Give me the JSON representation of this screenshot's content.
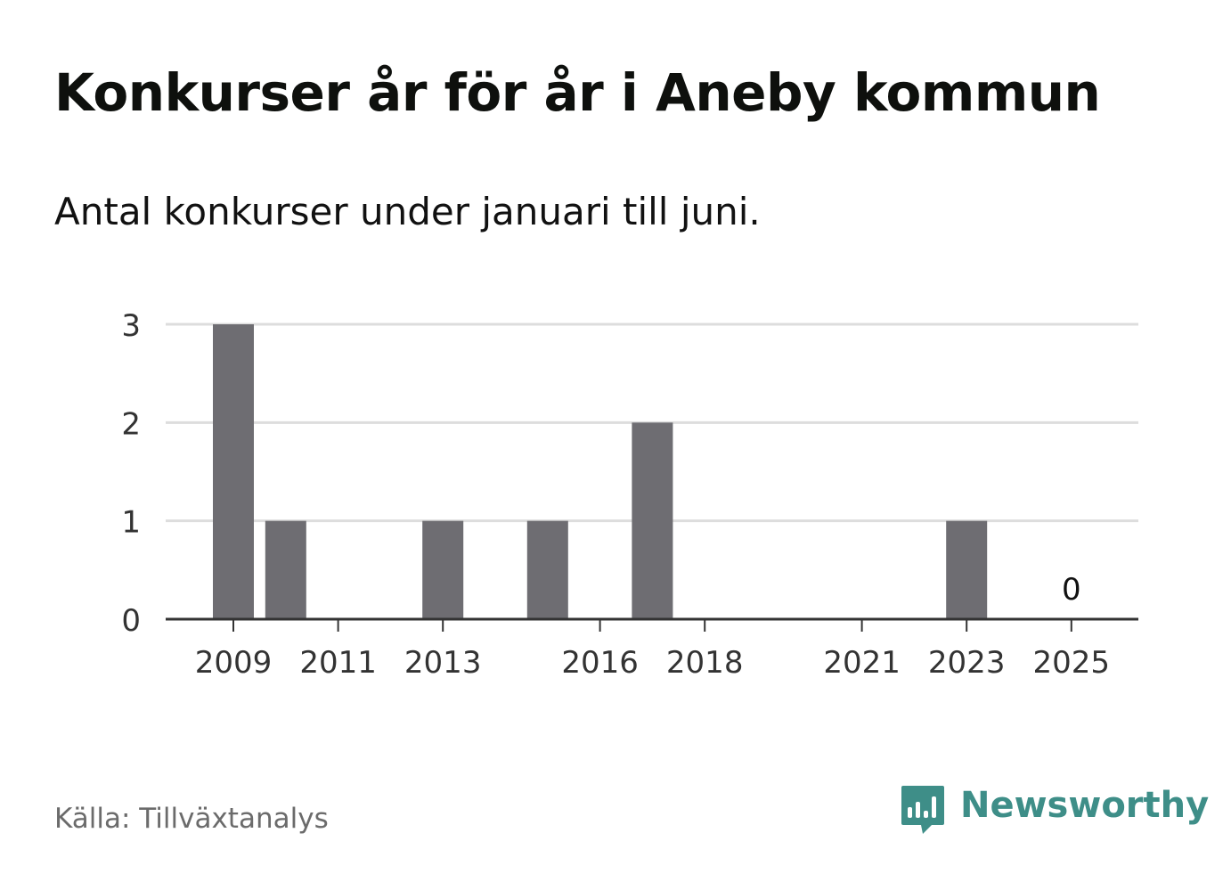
{
  "title": "Konkurser år för år i Aneby kommun",
  "subtitle": "Antal konkurser under januari till juni.",
  "source": "Källa: Tillväxtanalys",
  "brand": {
    "name": "Newsworthy",
    "icon": "newsworthy-logo-icon",
    "color": "#3e8e88"
  },
  "chart_data": {
    "type": "bar",
    "x": [
      2009,
      2010,
      2011,
      2012,
      2013,
      2014,
      2015,
      2016,
      2017,
      2018,
      2019,
      2020,
      2021,
      2022,
      2023,
      2024,
      2025
    ],
    "values": [
      3,
      1,
      0,
      0,
      1,
      0,
      1,
      0,
      2,
      0,
      0,
      0,
      0,
      0,
      1,
      0,
      0
    ],
    "x_tick_labels": [
      "2009",
      "2011",
      "2013",
      "2016",
      "2018",
      "2021",
      "2023",
      "2025"
    ],
    "y_ticks": [
      0,
      1,
      2,
      3
    ],
    "ylim": [
      0,
      3
    ],
    "annotations": [
      {
        "x": 2025,
        "text": "0"
      }
    ],
    "grid": true,
    "bar_color": "#6e6d72",
    "grid_color": "#dddddd",
    "axis_color": "#333333",
    "xlabel": "",
    "ylabel": ""
  }
}
